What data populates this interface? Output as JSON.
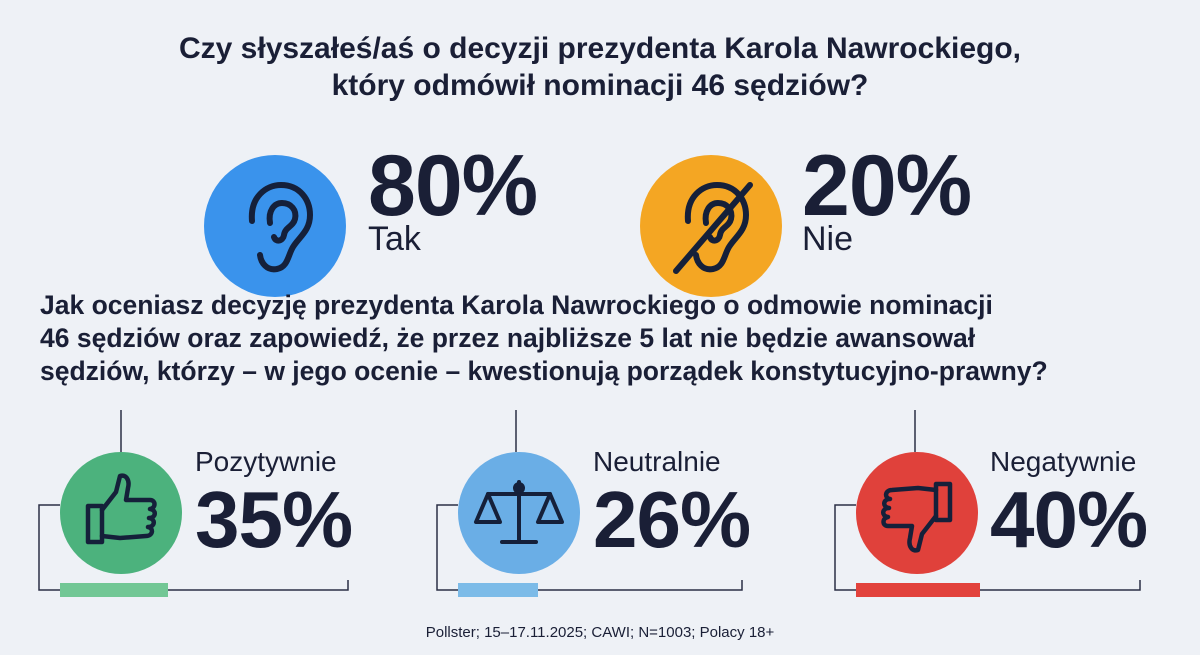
{
  "question1": {
    "line1": "Czy słyszałeś/aś o decyzji prezydenta Karola Nawrockiego,",
    "line2": "który odmówił nominacji 46 sędziów?"
  },
  "q1_answers": [
    {
      "label": "Tak",
      "pct": "80%",
      "icon": "ear-icon",
      "color": "#3a93ec"
    },
    {
      "label": "Nie",
      "pct": "20%",
      "icon": "ear-crossed-icon",
      "color": "#f4a623"
    }
  ],
  "question2": {
    "line1": "Jak oceniasz decyzję prezydenta Karola Nawrockiego o odmowie nominacji",
    "line2": "46 sędziów oraz zapowiedź, że przez najbliższe 5 lat nie będzie awansował",
    "line3": "sędziów, którzy – w jego ocenie – kwestionują porządek konstytucyjno-prawny?"
  },
  "q2_answers": [
    {
      "label": "Pozytywnie",
      "pct": "35%",
      "icon": "thumbs-up-icon",
      "color": "#4cb27d",
      "bar_color": "#72c795"
    },
    {
      "label": "Neutralnie",
      "pct": "26%",
      "icon": "scales-icon",
      "color": "#6aaee6",
      "bar_color": "#7cbbe8"
    },
    {
      "label": "Negatywnie",
      "pct": "40%",
      "icon": "thumbs-down-icon",
      "color": "#e0413b",
      "bar_color": "#e2423c"
    }
  ],
  "chart_data": [
    {
      "type": "bar",
      "title": "Czy słyszałeś/aś o decyzji prezydenta Karola Nawrockiego, który odmówił nominacji 46 sędziów?",
      "categories": [
        "Tak",
        "Nie"
      ],
      "values": [
        80,
        20
      ]
    },
    {
      "type": "bar",
      "title": "Jak oceniasz decyzję prezydenta Karola Nawrockiego o odmowie nominacji 46 sędziów oraz zapowiedź, że przez najbliższe 5 lat nie będzie awansował sędziów, którzy – w jego ocenie – kwestionują porządek konstytucyjno-prawny?",
      "categories": [
        "Pozytywnie",
        "Neutralnie",
        "Negatywnie"
      ],
      "values": [
        35,
        26,
        40
      ]
    }
  ],
  "footer": "Pollster; 15–17.11.2025; CAWI; N=1003; Polacy 18+"
}
